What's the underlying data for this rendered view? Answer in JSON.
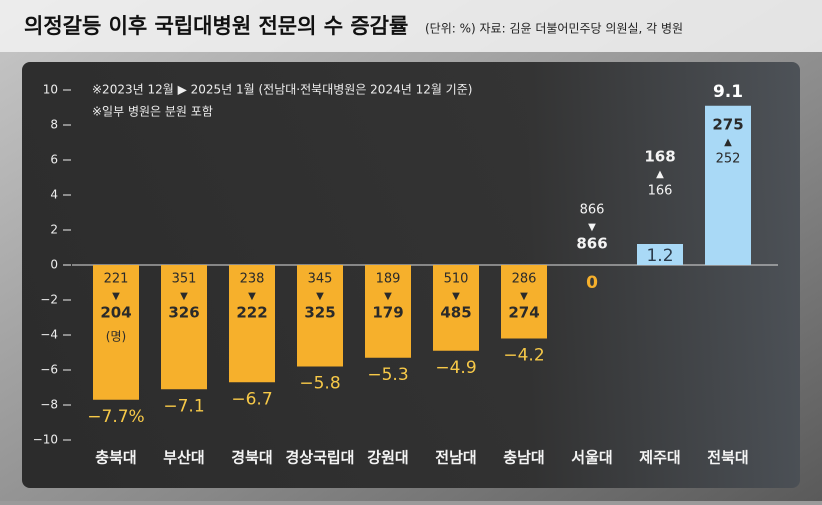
{
  "chart_data": {
    "type": "bar",
    "title": "의정갈등 이후 국립대병원 전문의 수 증감률",
    "source": "(단위: %) 자료: 김윤 더불어민주당 의원실, 각 병원",
    "notes": [
      "※2023년 12월 ▶ 2025년 1월 (전남대·전북대병원은 2024년 12월 기준)",
      "※일부 병원은 분원 포함"
    ],
    "categories": [
      "충북대",
      "부산대",
      "경북대",
      "경상국립대",
      "강원대",
      "전남대",
      "충남대",
      "서울대",
      "제주대",
      "전북대"
    ],
    "values": [
      -7.7,
      -7.1,
      -6.7,
      -5.8,
      -5.3,
      -4.9,
      -4.2,
      0,
      1.2,
      9.1
    ],
    "value_labels": [
      "−7.7%",
      "−7.1",
      "−6.7",
      "−5.8",
      "−5.3",
      "−4.9",
      "−4.2",
      "0",
      "1.2",
      "9.1"
    ],
    "before": [
      221,
      351,
      238,
      345,
      189,
      510,
      286,
      866,
      166,
      252
    ],
    "after": [
      204,
      326,
      222,
      325,
      179,
      485,
      274,
      866,
      168,
      275
    ],
    "unit_label": "(명)",
    "negative_color": "#f6b02c",
    "positive_color": "#a9d9f6",
    "ylim": [
      -10,
      10
    ],
    "yticks": [
      {
        "value": -10,
        "label": "−10"
      },
      {
        "value": -8,
        "label": "−8"
      },
      {
        "value": -6,
        "label": "−6"
      },
      {
        "value": -4,
        "label": "−4"
      },
      {
        "value": -2,
        "label": "−2"
      },
      0,
      2,
      4,
      6,
      8,
      10
    ]
  }
}
